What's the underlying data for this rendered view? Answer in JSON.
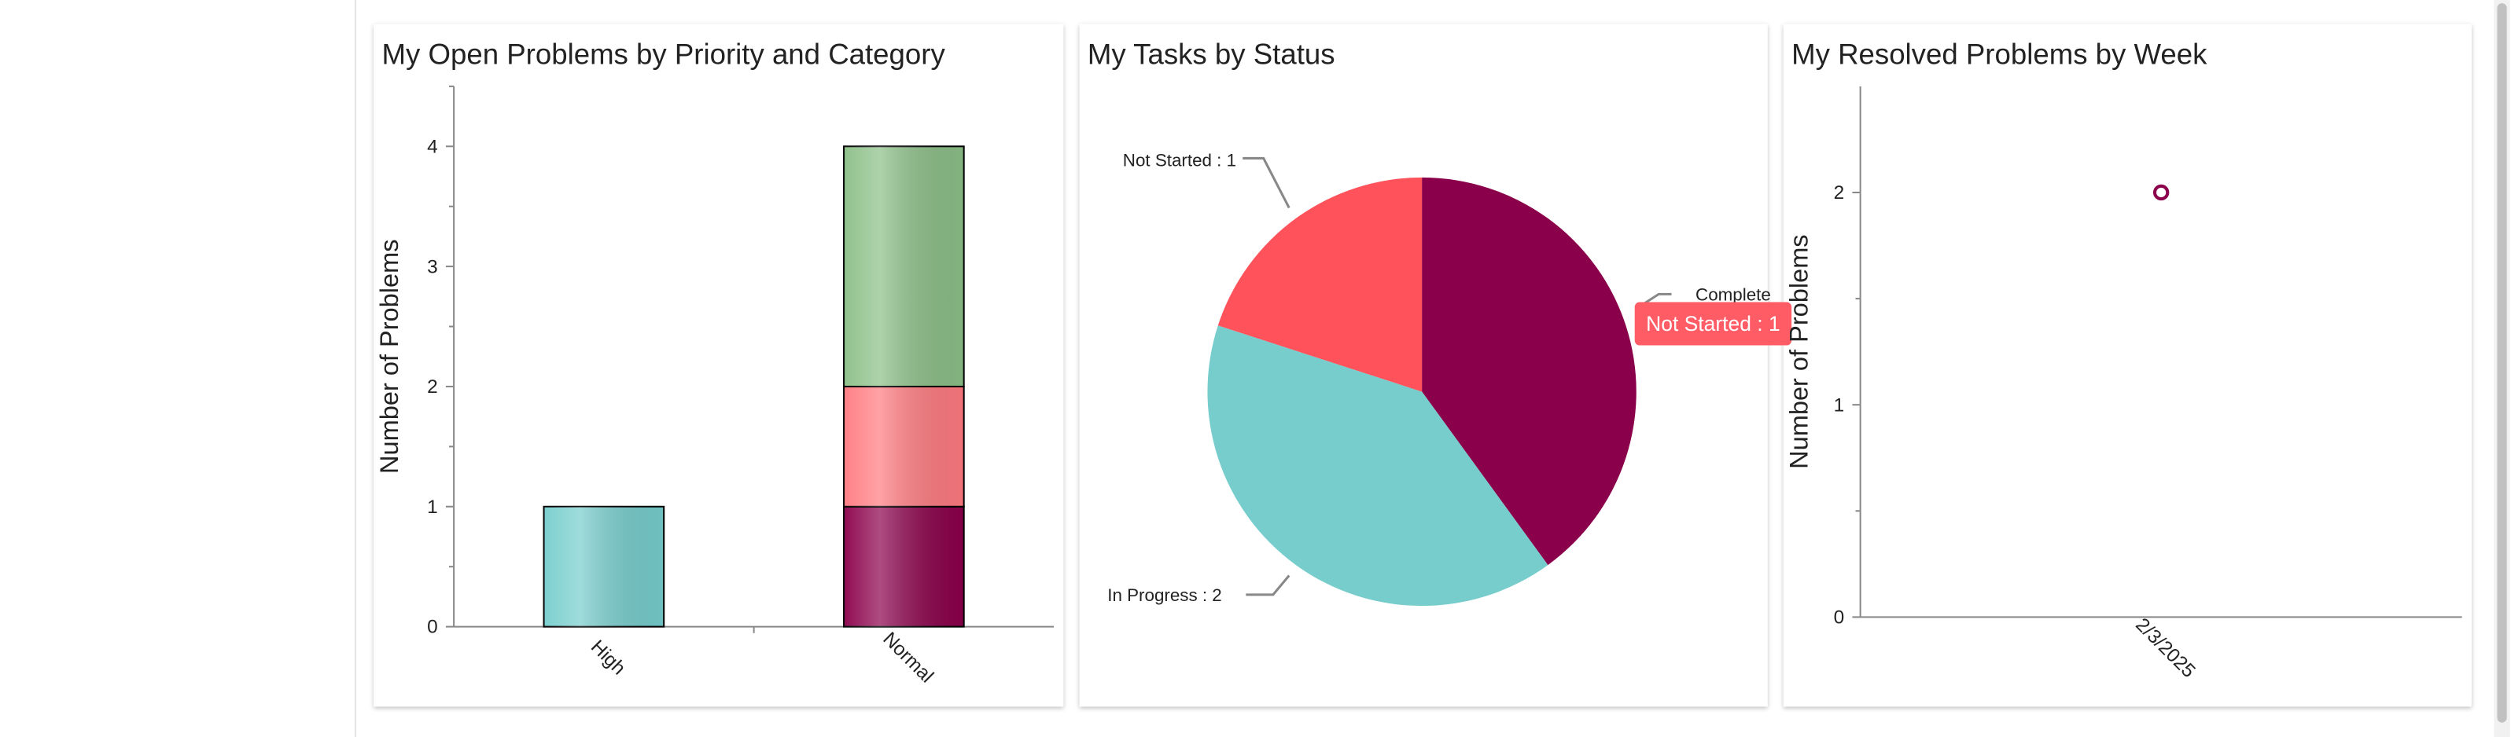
{
  "chart_data": [
    {
      "type": "bar",
      "stacked": true,
      "title": "My Open Problems by Priority and Category",
      "y_label": "Number of Problems",
      "categories": [
        "High",
        "Normal"
      ],
      "series": [
        {
          "color": "#76cdcd",
          "values": [
            1,
            null
          ]
        },
        {
          "color": "#8b004b",
          "values": [
            null,
            1
          ]
        },
        {
          "color": "#ff7a80",
          "values": [
            null,
            1
          ]
        },
        {
          "color": "#8bbf87",
          "values": [
            null,
            2
          ]
        }
      ],
      "ylim": [
        0,
        4.5
      ],
      "yticks": [
        0,
        1,
        2,
        3,
        4
      ]
    },
    {
      "type": "pie",
      "title": "My Tasks by Status",
      "values": [
        2,
        2,
        1
      ],
      "value_labels": [
        "Complete",
        "In Progress : 2",
        "Not Started : 1"
      ],
      "colors": [
        "#8b004b",
        "#76cdcc",
        "#ff525b"
      ],
      "tooltip": "Not Started : 1"
    },
    {
      "type": "scatter",
      "title": "My Resolved Problems by Week",
      "y_label": "Number of Problems",
      "categories": [
        "2/3/2025"
      ],
      "values": [
        2
      ],
      "color": "#8b004b",
      "ylim": [
        0,
        2.5
      ],
      "yticks": [
        0,
        1,
        2
      ]
    }
  ]
}
